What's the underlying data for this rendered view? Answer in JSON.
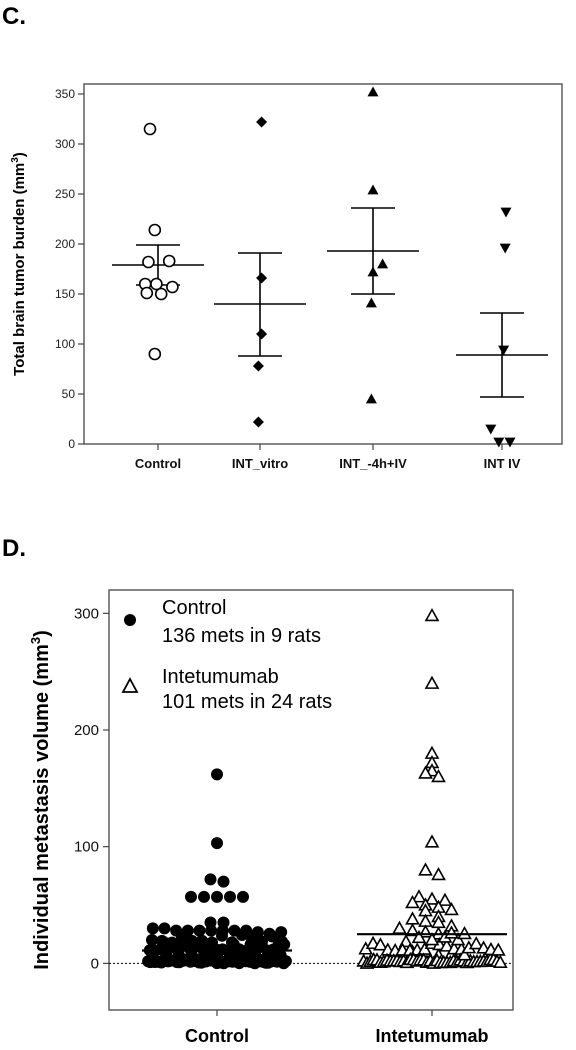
{
  "panel_c": {
    "label": "C.",
    "ylabel": "Total brain tumor burden (mm",
    "ylabel_sup": "3",
    "ylabel_close": ")"
  },
  "panel_d": {
    "label": "D.",
    "ylabel": "Individual metastasis volume (mm",
    "ylabel_sup": "3",
    "ylabel_close": ")",
    "legend": [
      {
        "line1": "Control",
        "line2": "136 mets in 9 rats",
        "marker": "filled-circle"
      },
      {
        "line1": "Intetumumab",
        "line2": "101 mets in 24 rats",
        "marker": "open-triangle"
      }
    ]
  },
  "chart_data": [
    {
      "type": "scatter",
      "panel": "C.",
      "ylabel": "Total brain tumor burden (mm3)",
      "ylim": [
        0,
        360
      ],
      "yticks": [
        0,
        50,
        100,
        150,
        200,
        250,
        300,
        350
      ],
      "categories": [
        "Control",
        "INT_vitro",
        "INT_-4h+IV",
        "INT IV"
      ],
      "series": [
        {
          "category": "Control",
          "marker": "open-circle",
          "mean": 179,
          "sem_low": 159,
          "sem_high": 199,
          "points": [
            [
              -0.5,
              315
            ],
            [
              -0.6,
              182
            ],
            [
              0.7,
              183
            ],
            [
              -0.2,
              214
            ],
            [
              -0.8,
              160
            ],
            [
              -0.1,
              160
            ],
            [
              0.9,
              157
            ],
            [
              -0.7,
              151
            ],
            [
              0.2,
              150
            ],
            [
              -0.2,
              90
            ]
          ]
        },
        {
          "category": "INT_vitro",
          "marker": "filled-diamond",
          "mean": 140,
          "sem_low": 88,
          "sem_high": 191,
          "points": [
            [
              0.1,
              322
            ],
            [
              0.1,
              166
            ],
            [
              0.1,
              110
            ],
            [
              -0.1,
              78
            ],
            [
              -0.1,
              22
            ]
          ]
        },
        {
          "category": "INT_-4h+IV",
          "marker": "filled-triangle-up",
          "mean": 193,
          "sem_low": 150,
          "sem_high": 236,
          "points": [
            [
              0.0,
              352
            ],
            [
              0.0,
              254
            ],
            [
              0.0,
              172
            ],
            [
              0.6,
              180
            ],
            [
              -0.1,
              141
            ],
            [
              -0.1,
              45
            ]
          ]
        },
        {
          "category": "INT IV",
          "marker": "filled-triangle-down",
          "mean": 89,
          "sem_low": 47,
          "sem_high": 131,
          "points": [
            [
              0.25,
              232
            ],
            [
              0.2,
              196
            ],
            [
              0.1,
              94
            ],
            [
              -0.7,
              15
            ],
            [
              -0.2,
              2
            ],
            [
              0.5,
              2
            ]
          ]
        }
      ],
      "grid": false
    },
    {
      "type": "scatter",
      "panel": "D.",
      "ylabel": "Individual metastasis volume (mm3)",
      "ylim": [
        -40,
        320
      ],
      "yticks": [
        0,
        100,
        200,
        300
      ],
      "categories": [
        "Control",
        "Intetumumab"
      ],
      "zero_line": "dotted",
      "legend_position": "top-left",
      "series": [
        {
          "category": "Control",
          "marker": "filled-circle",
          "mean": 11,
          "n": 136,
          "highlighted_values": [
            162,
            103,
            72,
            70,
            57,
            57,
            57,
            57,
            57,
            35,
            35,
            30,
            30,
            28,
            28,
            28,
            28,
            28,
            28,
            28
          ]
        },
        {
          "category": "Intetumumab",
          "marker": "open-triangle",
          "mean": 25,
          "n": 101,
          "highlighted_values": [
            298,
            240,
            180,
            172,
            165,
            163,
            160,
            104,
            80,
            76,
            57,
            55,
            54,
            52,
            50,
            48,
            46,
            45,
            40,
            38,
            36,
            35,
            32,
            30,
            28
          ]
        }
      ],
      "grid": false
    }
  ]
}
